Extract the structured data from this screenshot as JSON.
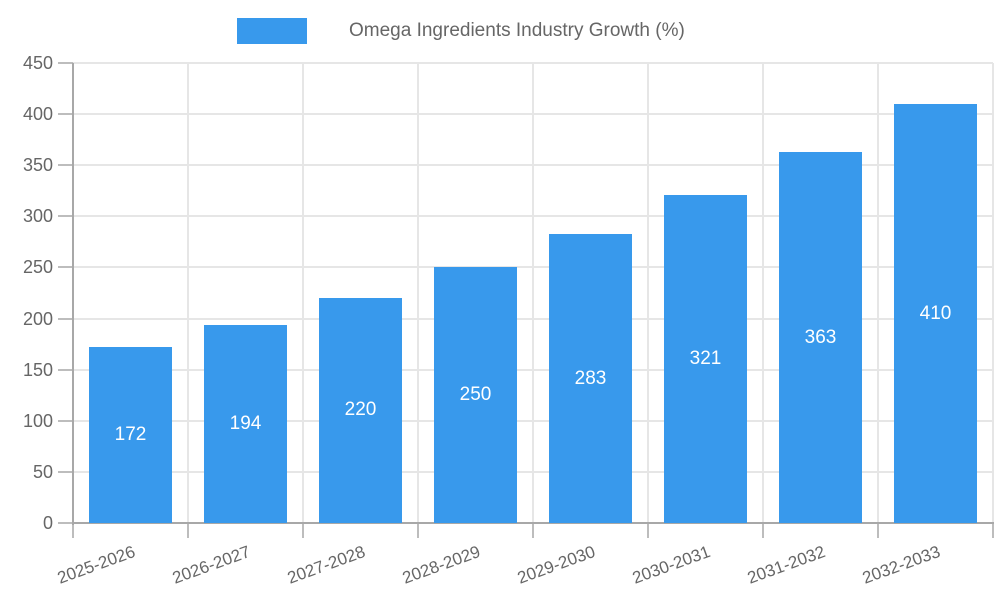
{
  "chart_data": {
    "type": "bar",
    "title": "Omega Ingredients Industry Growth (%)",
    "categories": [
      "2025-2026",
      "2026-2027",
      "2027-2028",
      "2028-2029",
      "2029-2030",
      "2030-2031",
      "2031-2032",
      "2032-2033"
    ],
    "values": [
      172,
      194,
      220,
      250,
      283,
      321,
      363,
      410
    ],
    "value_labels": [
      "172",
      "194",
      "220",
      "250",
      "283",
      "321",
      "363",
      "410"
    ],
    "xlabel": "",
    "ylabel": "",
    "ylim": [
      0,
      450
    ],
    "ytick_step": 50,
    "ytick_labels": [
      "0",
      "50",
      "100",
      "150",
      "200",
      "250",
      "300",
      "350",
      "400",
      "450"
    ],
    "grid": true,
    "legend_position": "top",
    "bar_color": "#3899ec",
    "value_label_color": "#ffffff",
    "axis_text_color": "#666666",
    "grid_color": "#e6e6e6",
    "axis_line_color": "#a8a8a8"
  },
  "legend": {
    "label": "Omega Ingredients Industry Growth (%)",
    "swatch_color": "#3899ec"
  }
}
